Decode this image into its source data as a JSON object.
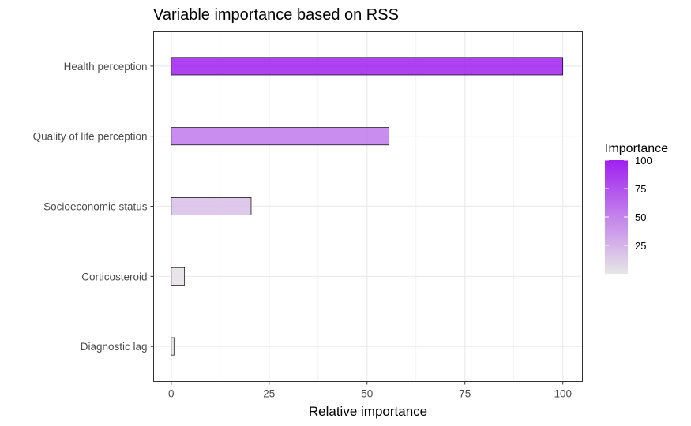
{
  "chart_data": {
    "type": "bar",
    "orientation": "horizontal",
    "title": "Variable importance based on RSS",
    "xlabel": "Relative importance",
    "ylabel": "",
    "categories": [
      "Health perception",
      "Quality of life perception",
      "Socioeconomic status",
      "Corticosteroid",
      "Diagnostic lag"
    ],
    "values": [
      100,
      55.6,
      20.4,
      3.4,
      0.7
    ],
    "xlim": [
      -4.5,
      105
    ],
    "x_ticks": [
      0,
      25,
      50,
      75,
      100
    ],
    "grid": true,
    "legend": {
      "title": "Importance",
      "placement": "right",
      "ticks": [
        25,
        50,
        75,
        100
      ],
      "range": [
        0,
        100
      ],
      "low_color": "#e6e6e6",
      "high_color": "#a020f0"
    }
  }
}
